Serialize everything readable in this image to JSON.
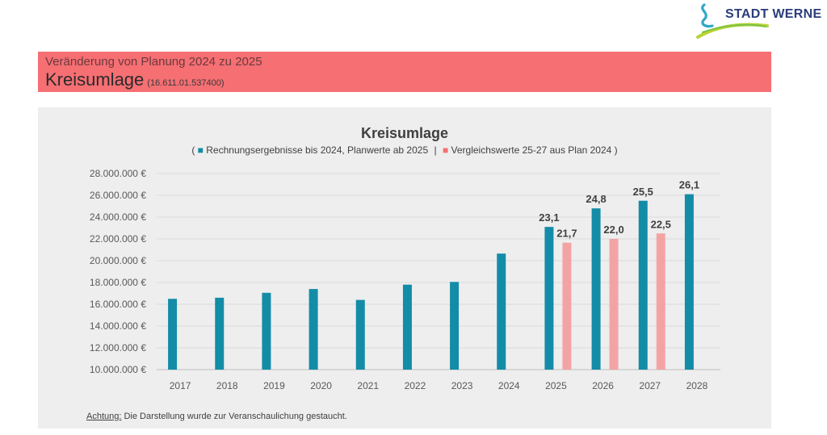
{
  "logo": {
    "text": "STADT WERNE",
    "icon": "stadt-werne-logo-swoosh"
  },
  "banner": {
    "subtitle": "Veränderung von Planung 2024 zu 2025",
    "title": "Kreisumlage",
    "code": "(16.611.01.537400)"
  },
  "note": {
    "label": "Achtung:",
    "text": "Die Darstellung wurde zur Veranschaulichung gestaucht."
  },
  "chart_data": {
    "type": "bar",
    "title": "Kreisumlage",
    "legend_prefix": "(",
    "legend_separator": "|",
    "legend_suffix": ")",
    "legend_position": "top",
    "categories": [
      "2017",
      "2018",
      "2019",
      "2020",
      "2021",
      "2022",
      "2023",
      "2024",
      "2025",
      "2026",
      "2027",
      "2028"
    ],
    "series": [
      {
        "name": "Rechnungsergebnisse bis 2024, Planwerte ab 2025",
        "color": "#138ca8",
        "values": [
          16500000,
          16600000,
          17050000,
          17400000,
          16400000,
          17800000,
          18050000,
          20650000,
          23100000,
          24800000,
          25500000,
          26100000
        ],
        "labels": [
          null,
          null,
          null,
          null,
          null,
          null,
          null,
          null,
          "23,1",
          "24,8",
          "25,5",
          "26,1"
        ]
      },
      {
        "name": "Vergleichswerte 25-27 aus Plan 2024",
        "color": "#f4a3a5",
        "values": [
          null,
          null,
          null,
          null,
          null,
          null,
          null,
          null,
          21650000,
          22000000,
          22500000,
          null
        ],
        "labels": [
          null,
          null,
          null,
          null,
          null,
          null,
          null,
          null,
          "21,7",
          "22,0",
          "22,5",
          null
        ]
      }
    ],
    "y_ticks": [
      "10.000.000 €",
      "12.000.000 €",
      "14.000.000 €",
      "16.000.000 €",
      "18.000.000 €",
      "20.000.000 €",
      "22.000.000 €",
      "24.000.000 €",
      "26.000.000 €",
      "28.000.000 €"
    ],
    "ylim": [
      10000000,
      28000000
    ],
    "grid": true,
    "xlabel": "",
    "ylabel": ""
  }
}
